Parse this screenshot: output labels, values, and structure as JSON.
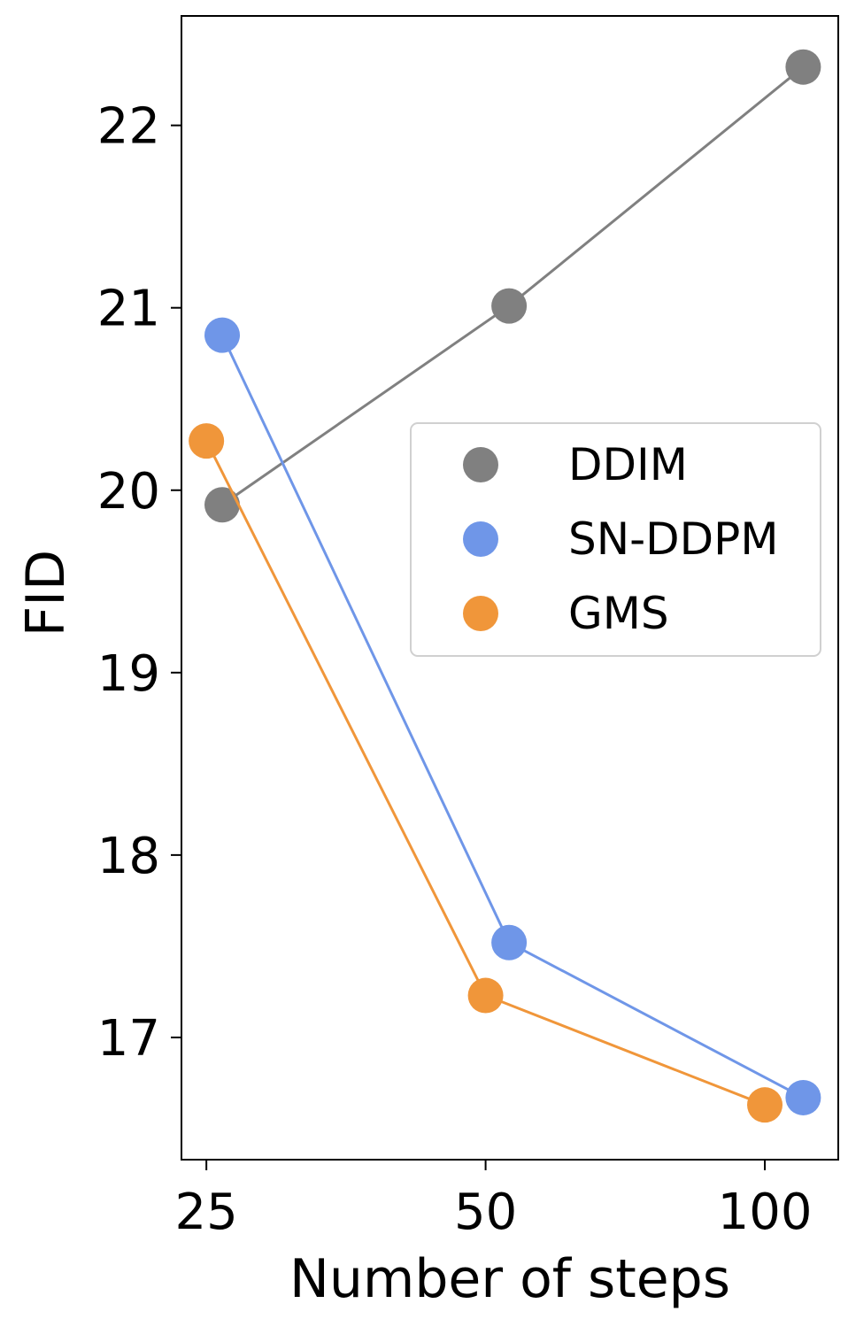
{
  "chart_data": {
    "type": "line",
    "xlabel": "Number of steps",
    "ylabel": "FID",
    "x_scale": "log",
    "xlim": [
      23.5,
      120
    ],
    "ylim": [
      16.33,
      22.6
    ],
    "x_ticks": [
      25,
      50,
      100
    ],
    "y_ticks": [
      17,
      18,
      19,
      20,
      21,
      22
    ],
    "grid": false,
    "legend_position": "center-right",
    "series": [
      {
        "name": "DDIM",
        "color": "#808080",
        "x": [
          26,
          53,
          110
        ],
        "y": [
          19.92,
          21.01,
          22.32
        ]
      },
      {
        "name": "SN-DDPM",
        "color": "#6f96e8",
        "x": [
          26,
          53,
          110
        ],
        "y": [
          20.85,
          17.52,
          16.67
        ]
      },
      {
        "name": "GMS",
        "color": "#f0963a",
        "x": [
          25,
          50,
          100
        ],
        "y": [
          20.27,
          17.23,
          16.63
        ]
      }
    ]
  }
}
